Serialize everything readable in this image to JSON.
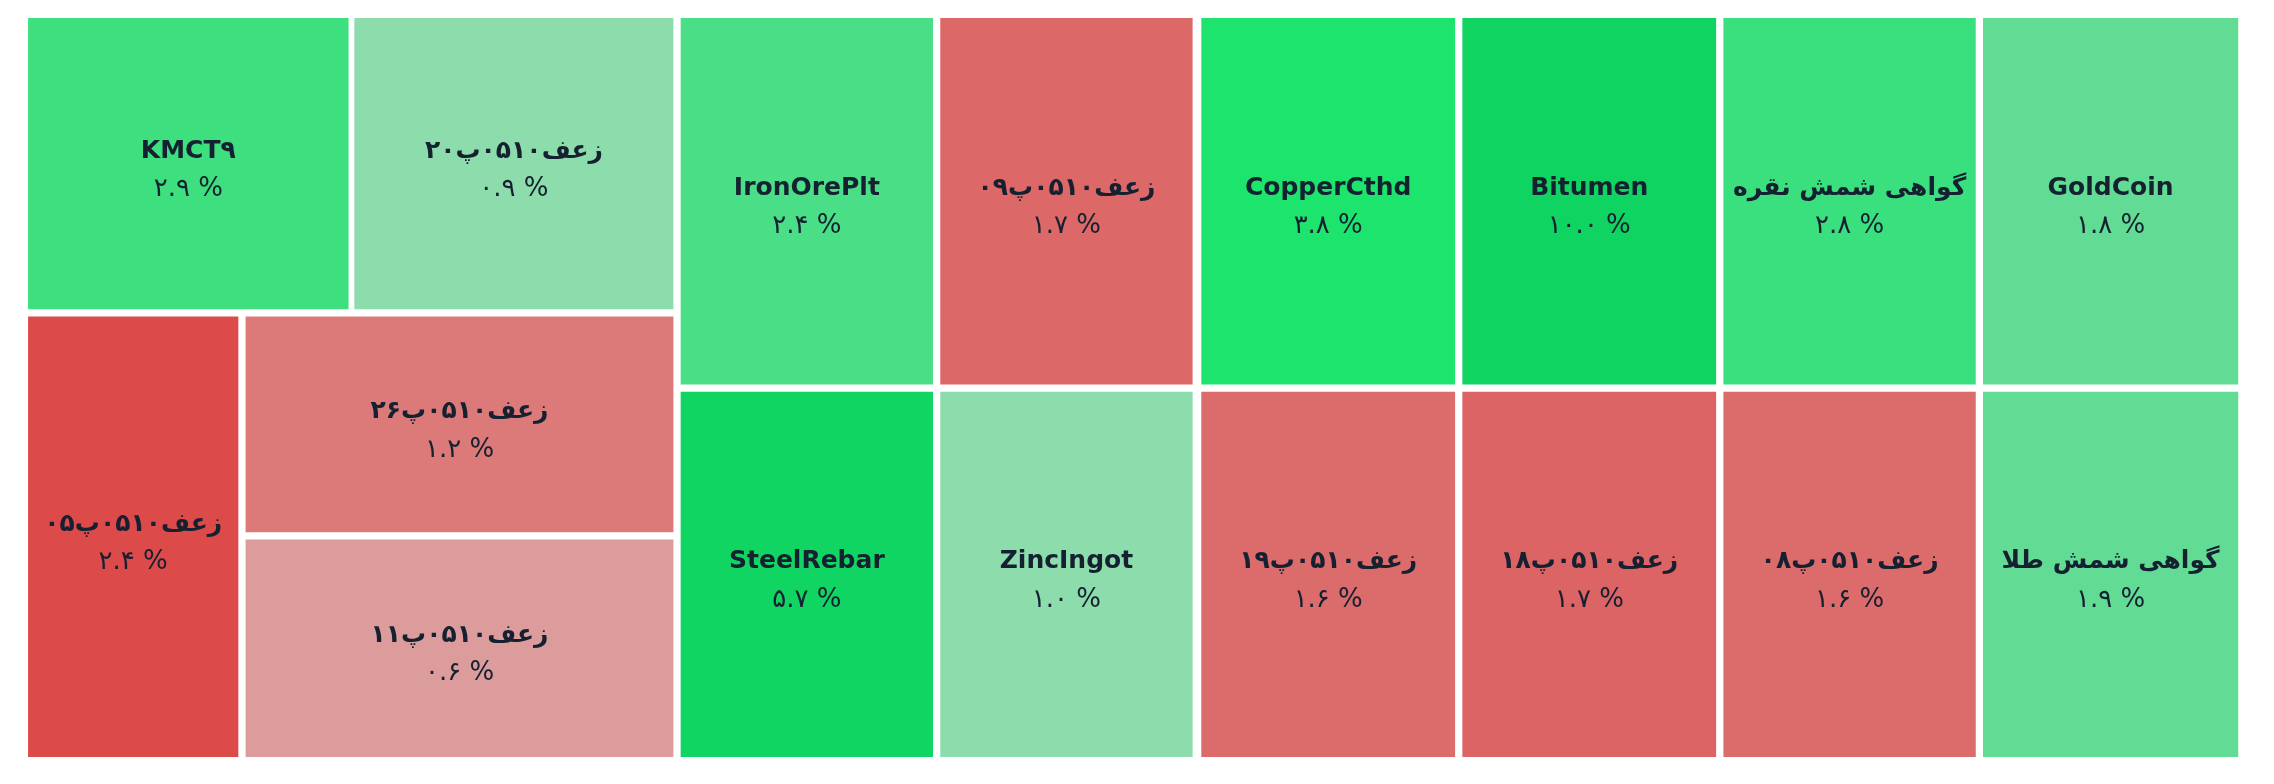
{
  "chart_data": {
    "type": "other",
    "categories": [
      "KMCT٩",
      "زعف۰۵۱۰پ۲۰",
      "IronOrePlt",
      "زعف۰۵۱۰پ۰۹",
      "CopperCthd",
      "Bitumen",
      "گواهی شمش نقره",
      "GoldCoin",
      "زعف۰۵۱۰پ۰۵",
      "زعف۰۵۱۰پ۲۶",
      "زعف۰۵۱۰پ۱۱",
      "SteelRebar",
      "ZincIngot",
      "زعف۰۵۱۰پ۱۹",
      "زعف۰۵۱۰پ۱۸",
      "زعف۰۵۱۰پ۰۸",
      "گواهی شمش طلا"
    ],
    "values": [
      2.9,
      0.9,
      2.4,
      1.7,
      3.8,
      10.0,
      2.8,
      1.8,
      2.4,
      1.2,
      0.6,
      5.7,
      1.0,
      1.6,
      1.7,
      1.6,
      1.9
    ],
    "value_labels": [
      "۲.۹ %",
      "۰.۹ %",
      "۲.۴ %",
      "۱.۷ %",
      "۳.۸ %",
      "۱۰.۰ %",
      "۲.۸ %",
      "۱.۸ %",
      "۲.۴ %",
      "۱.۲ %",
      "۰.۶ %",
      "۵.۷ %",
      "۱.۰ %",
      "۱.۶ %",
      "۱.۷ %",
      "۱.۶ %",
      "۱.۹ %"
    ],
    "colors": [
      "#3ddf7e",
      "#8cdcac",
      "#4ade86",
      "#dc6868",
      "#1de46c",
      "#0fd462",
      "#3ae07e",
      "#62dc95",
      "#dd4a4a",
      "#dc7a7a",
      "#dd9c9c",
      "#10d562",
      "#8cdcac",
      "#dc6b6b",
      "#dc6464",
      "#dc6b6b",
      "#62dc95"
    ]
  }
}
